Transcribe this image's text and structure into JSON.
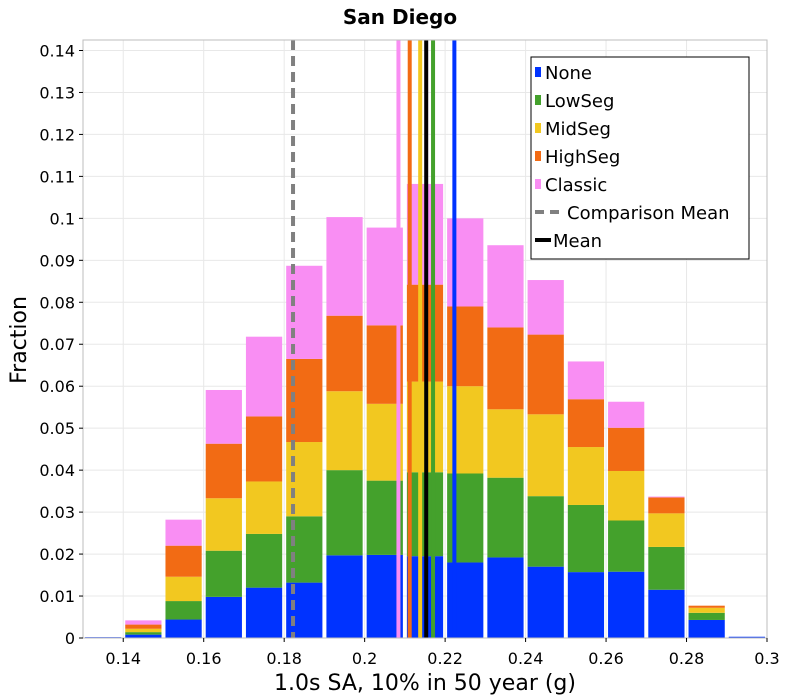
{
  "chart_data": {
    "type": "bar",
    "stacked": true,
    "title": "San Diego",
    "xlabel": "1.0s SA, 10% in 50 year (g)",
    "ylabel": "Fraction",
    "xlim": [
      0.13,
      0.3
    ],
    "ylim": [
      0,
      0.1425
    ],
    "bin_width": 0.01,
    "grid": true,
    "legend_position": "top-right",
    "x_ticks": [
      0.14,
      0.16,
      0.18,
      0.2,
      0.22,
      0.24,
      0.26,
      0.28,
      0.3
    ],
    "x_tick_labels": [
      "0.14",
      "0.16",
      "0.18",
      "0.2",
      "0.22",
      "0.24",
      "0.26",
      "0.28",
      "0.3"
    ],
    "y_ticks": [
      0,
      0.01,
      0.02,
      0.03,
      0.04,
      0.05,
      0.06,
      0.07,
      0.08,
      0.09,
      0.1,
      0.11,
      0.12,
      0.13,
      0.14
    ],
    "y_tick_labels": [
      "0",
      "0.01",
      "0.02",
      "0.03",
      "0.04",
      "0.05",
      "0.06",
      "0.07",
      "0.08",
      "0.09",
      "0.1",
      "0.11",
      "0.12",
      "0.13",
      "0.14"
    ],
    "bins": [
      0.135,
      0.145,
      0.155,
      0.165,
      0.175,
      0.185,
      0.195,
      0.205,
      0.215,
      0.225,
      0.235,
      0.245,
      0.255,
      0.265,
      0.275,
      0.285,
      0.295
    ],
    "series": [
      {
        "name": "None",
        "color": "#0033ff",
        "values": [
          0.0002,
          0.0008,
          0.0044,
          0.0098,
          0.012,
          0.0132,
          0.0197,
          0.0198,
          0.0195,
          0.018,
          0.0192,
          0.017,
          0.0157,
          0.0158,
          0.0115,
          0.0043,
          0.0003
        ]
      },
      {
        "name": "LowSeg",
        "color": "#44a12c",
        "values": [
          0.0,
          0.0006,
          0.0044,
          0.011,
          0.0128,
          0.0158,
          0.0203,
          0.0177,
          0.02,
          0.0212,
          0.019,
          0.0168,
          0.016,
          0.0122,
          0.0102,
          0.0017,
          0.0
        ]
      },
      {
        "name": "MidSeg",
        "color": "#f2c820",
        "values": [
          0.0,
          0.0008,
          0.0058,
          0.0125,
          0.0125,
          0.0177,
          0.0188,
          0.0183,
          0.0216,
          0.0208,
          0.0163,
          0.0195,
          0.0138,
          0.0118,
          0.008,
          0.0012,
          0.0
        ]
      },
      {
        "name": "HighSeg",
        "color": "#f26b14",
        "values": [
          0.0,
          0.001,
          0.0074,
          0.013,
          0.0155,
          0.0198,
          0.018,
          0.0187,
          0.0231,
          0.019,
          0.0195,
          0.019,
          0.0114,
          0.0103,
          0.0038,
          0.0005,
          0.0
        ]
      },
      {
        "name": "Classic",
        "color": "#f98ef3",
        "values": [
          0.0,
          0.001,
          0.0062,
          0.0128,
          0.019,
          0.0222,
          0.0235,
          0.0233,
          0.024,
          0.021,
          0.0196,
          0.013,
          0.009,
          0.0062,
          0.0002,
          0.0,
          0.0
        ]
      }
    ],
    "vertical_lines": [
      {
        "name": "None",
        "x": 0.2223,
        "color": "#0033ff",
        "style": "solid",
        "in_legend": false
      },
      {
        "name": "LowSeg",
        "x": 0.217,
        "color": "#44a12c",
        "style": "solid",
        "in_legend": false
      },
      {
        "name": "MidSeg",
        "x": 0.2138,
        "color": "#f2c820",
        "style": "solid",
        "in_legend": false
      },
      {
        "name": "HighSeg",
        "x": 0.2112,
        "color": "#f26b14",
        "style": "solid",
        "in_legend": false
      },
      {
        "name": "Classic",
        "x": 0.2084,
        "color": "#f98ef3",
        "style": "solid",
        "in_legend": false
      },
      {
        "name": "Comparison Mean",
        "x": 0.1822,
        "color": "#808080",
        "style": "dashed",
        "in_legend": true
      },
      {
        "name": "Mean",
        "x": 0.2153,
        "color": "#000000",
        "style": "solid",
        "in_legend": true
      }
    ]
  }
}
